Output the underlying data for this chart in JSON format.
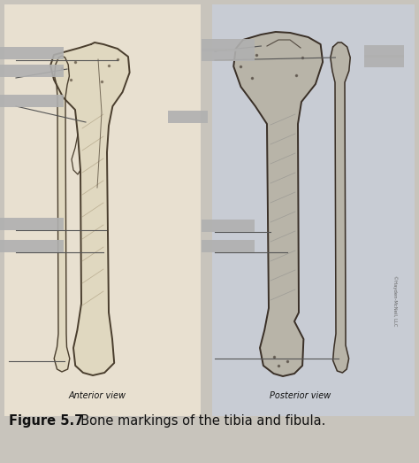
{
  "title_bold": "Figure 5.7",
  "title_normal": "  Bone markings of the tibia and fibula.",
  "anterior_label": "Anterior view",
  "posterior_label": "Posterior view",
  "bg_left": "#e8e0d0",
  "bg_right": "#c8ccd4",
  "bg_overall": "#c8c4bc",
  "bone_ant_fill": "#e0d8c0",
  "bone_ant_outline": "#4a3e2e",
  "bone_post_fill": "#b8b4a8",
  "bone_post_outline": "#3a3028",
  "hatch_color": "#a09070",
  "line_color": "#555555",
  "text_color": "#111111",
  "label_box_color": "#b0b0b0",
  "copyright_color": "#666666",
  "title_fontsize": 10,
  "view_label_fontsize": 7,
  "fig_width": 4.74,
  "fig_height": 5.23,
  "dpi": 100
}
